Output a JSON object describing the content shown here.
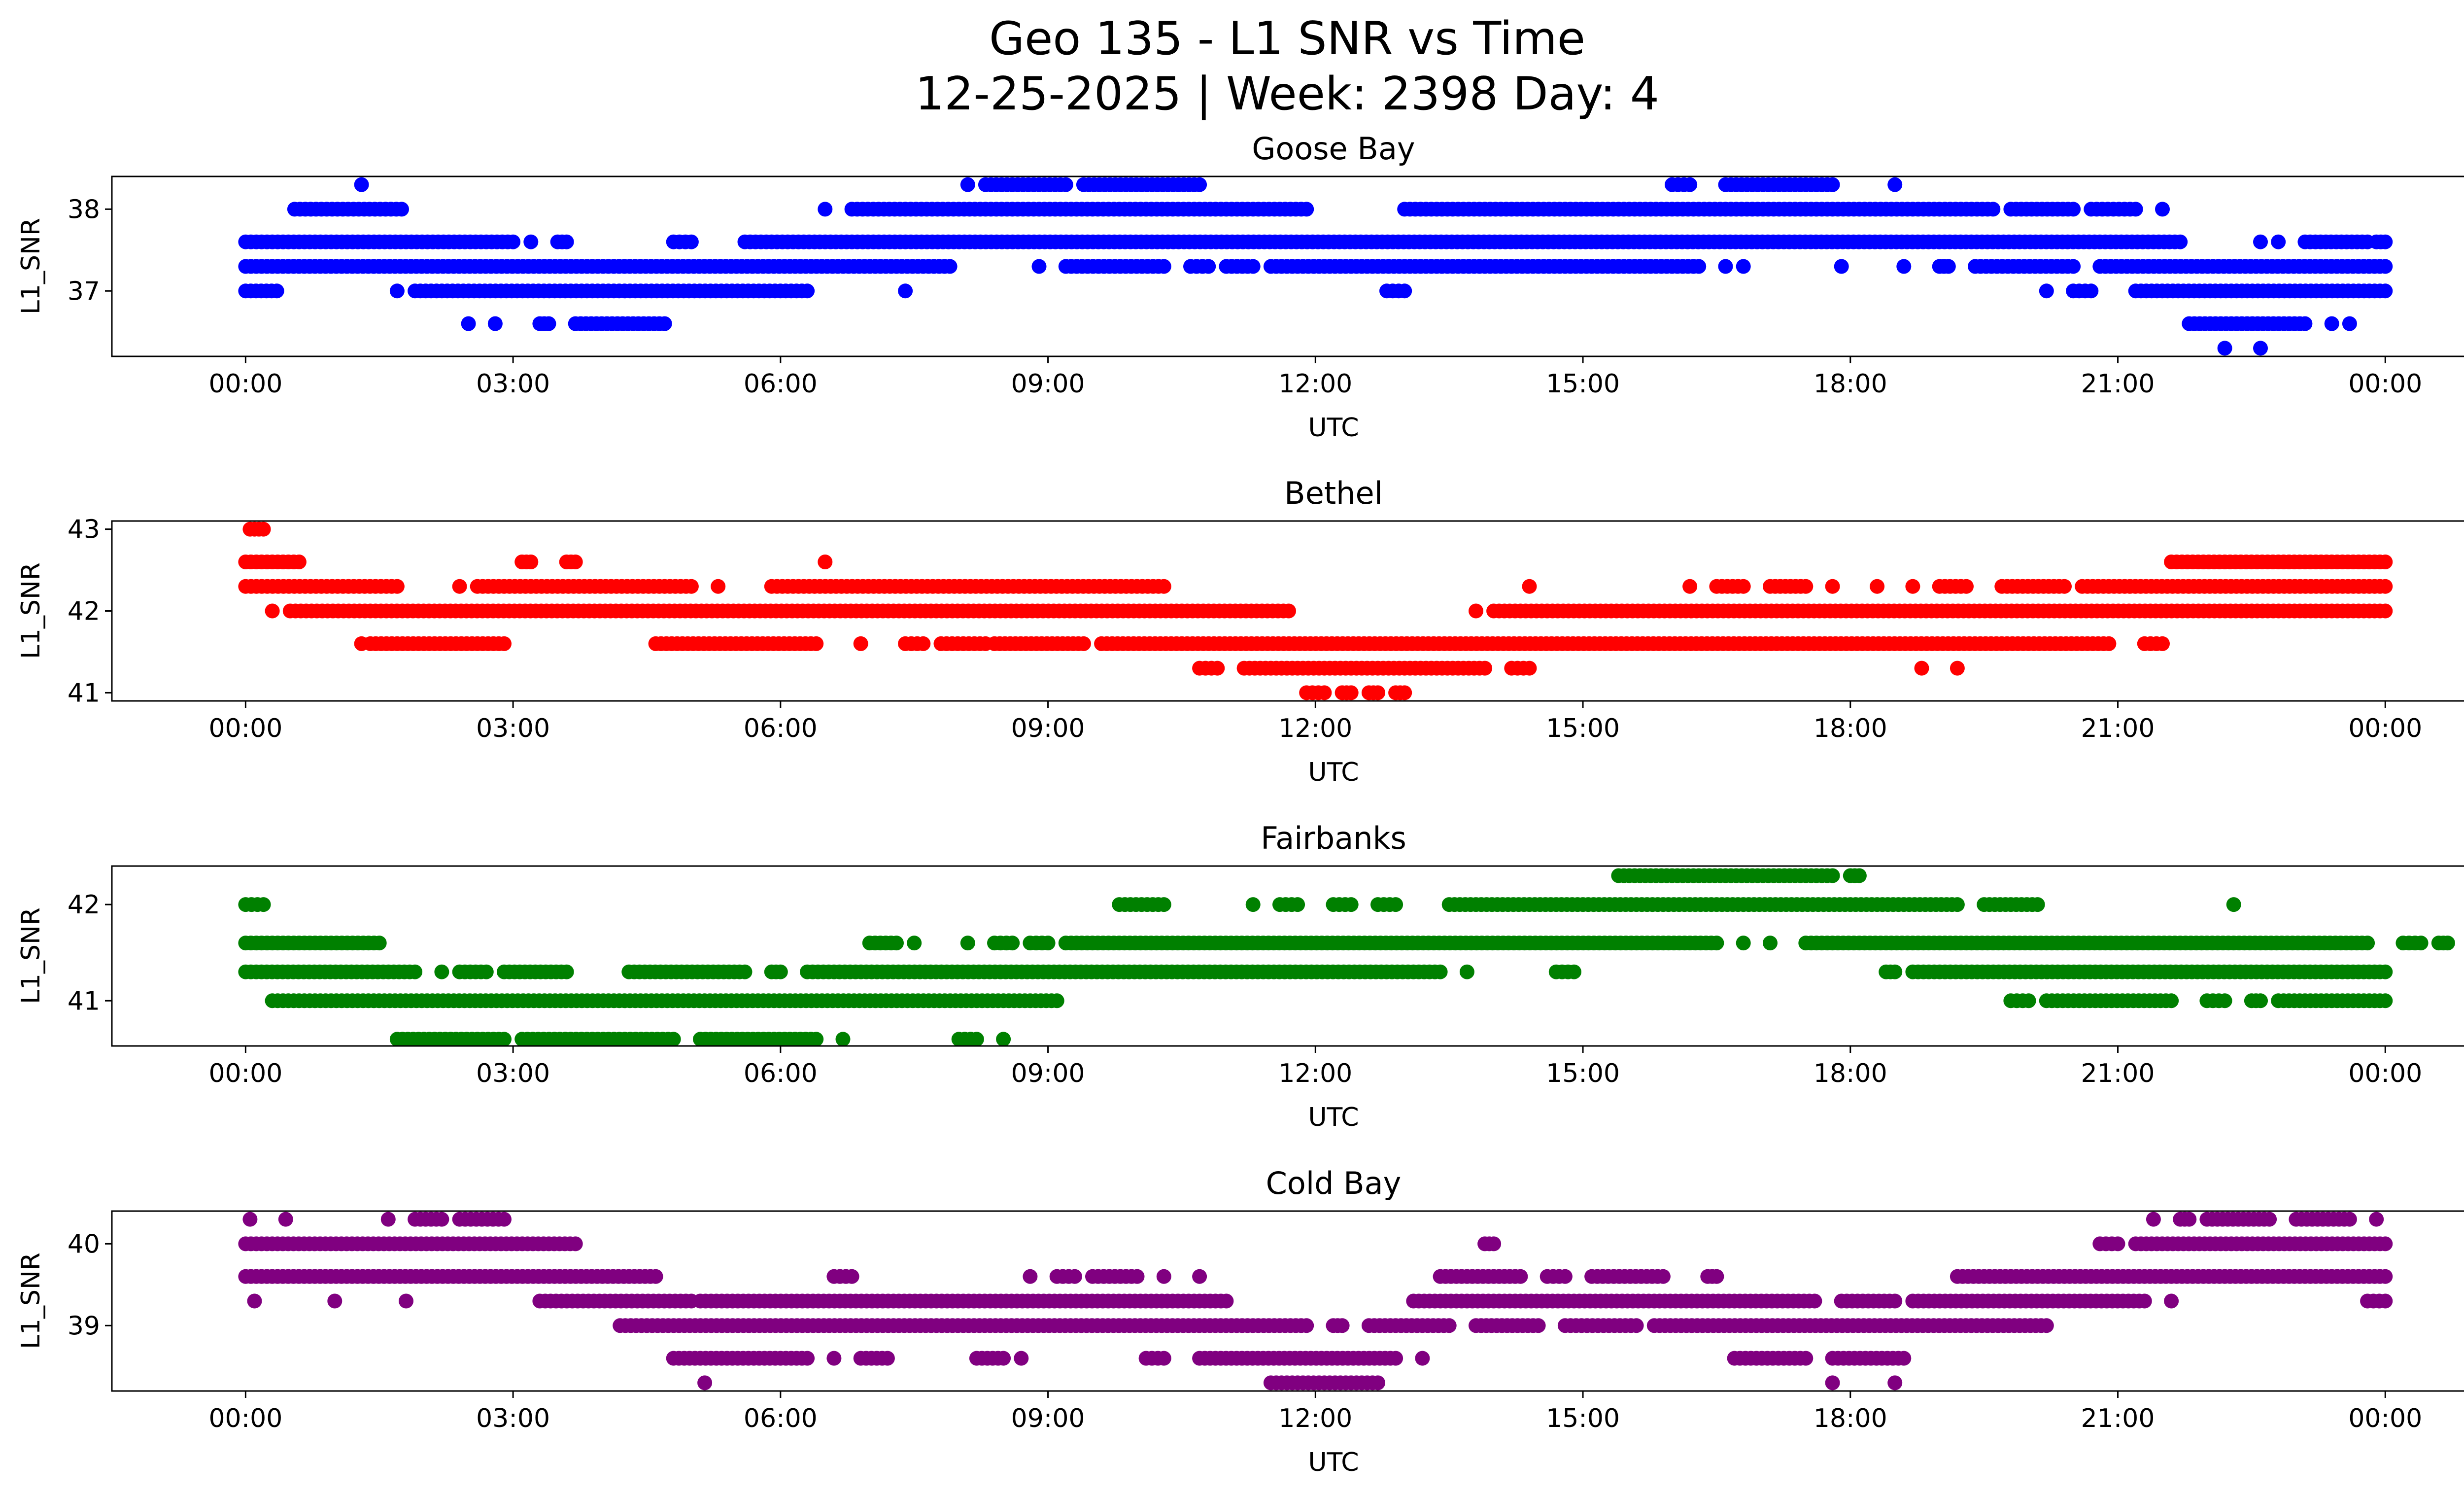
{
  "figure": {
    "title_line1": "Geo 135 - L1 SNR vs Time",
    "title_line2": "12-25-2025 | Week: 2398 Day: 4"
  },
  "chart_data": [
    {
      "type": "scatter",
      "title": "Goose Bay",
      "xlabel": "UTC",
      "ylabel": "L1_SNR",
      "color": "#0000ff",
      "xlim_hours": [
        -1.5,
        25.9
      ],
      "ylim": [
        36.2,
        38.4
      ],
      "xticks": [
        0,
        3,
        6,
        9,
        12,
        15,
        18,
        21,
        24
      ],
      "xtick_labels": [
        "00:00",
        "03:00",
        "06:00",
        "09:00",
        "12:00",
        "15:00",
        "18:00",
        "21:00",
        "00:00"
      ],
      "yticks": [
        37,
        38
      ],
      "ytick_labels": [
        "37",
        "38"
      ],
      "series": [
        {
          "y": 38.3,
          "segments": [
            [
              1.3,
              1.3
            ],
            [
              8.1,
              8.1
            ],
            [
              8.3,
              9.2
            ],
            [
              9.4,
              10.7
            ],
            [
              16,
              16.2
            ],
            [
              16.6,
              17.8
            ],
            [
              18.5,
              18.5
            ]
          ]
        },
        {
          "y": 38.0,
          "segments": [
            [
              0.55,
              1.75
            ],
            [
              6.5,
              6.5
            ],
            [
              6.8,
              11.9
            ],
            [
              13,
              19.6
            ],
            [
              19.8,
              20.5
            ],
            [
              20.7,
              21.2
            ],
            [
              21.5,
              21.5
            ]
          ]
        },
        {
          "y": 37.6,
          "segments": [
            [
              0,
              3.0
            ],
            [
              3.2,
              3.2
            ],
            [
              3.5,
              3.6
            ],
            [
              4.8,
              5.0
            ],
            [
              5.6,
              21.7
            ],
            [
              22.6,
              22.6
            ],
            [
              22.8,
              22.8
            ],
            [
              23.1,
              23.8
            ],
            [
              23.9,
              24
            ]
          ]
        },
        {
          "y": 37.3,
          "segments": [
            [
              0,
              7.9
            ],
            [
              8.9,
              8.9
            ],
            [
              9.2,
              10.3
            ],
            [
              10.6,
              10.8
            ],
            [
              11.0,
              11.3
            ],
            [
              11.5,
              16.3
            ],
            [
              16.6,
              16.6
            ],
            [
              16.8,
              16.8
            ],
            [
              17.9,
              17.9
            ],
            [
              18.6,
              18.6
            ],
            [
              19.0,
              19.1
            ],
            [
              19.4,
              20.5
            ],
            [
              20.8,
              24
            ]
          ]
        },
        {
          "y": 37.0,
          "segments": [
            [
              0,
              0.35
            ],
            [
              1.7,
              1.7
            ],
            [
              1.9,
              6.3
            ],
            [
              7.4,
              7.4
            ],
            [
              12.8,
              13
            ],
            [
              20.2,
              20.2
            ],
            [
              20.5,
              20.7
            ],
            [
              21.2,
              24
            ]
          ]
        },
        {
          "y": 36.6,
          "segments": [
            [
              2.5,
              2.5
            ],
            [
              2.8,
              2.8
            ],
            [
              3.3,
              3.4
            ],
            [
              3.7,
              4.7
            ],
            [
              21.8,
              23.1
            ],
            [
              23.4,
              23.4
            ],
            [
              23.6,
              23.6
            ]
          ]
        },
        {
          "y": 36.3,
          "segments": [
            [
              22.2,
              22.2
            ],
            [
              22.6,
              22.6
            ]
          ]
        }
      ]
    },
    {
      "type": "scatter",
      "title": "Bethel",
      "xlabel": "UTC",
      "ylabel": "L1_SNR",
      "color": "#ff0000",
      "xlim_hours": [
        -1.5,
        25.9
      ],
      "ylim": [
        40.9,
        43.1
      ],
      "xticks": [
        0,
        3,
        6,
        9,
        12,
        15,
        18,
        21,
        24
      ],
      "xtick_labels": [
        "00:00",
        "03:00",
        "06:00",
        "09:00",
        "12:00",
        "15:00",
        "18:00",
        "21:00",
        "00:00"
      ],
      "yticks": [
        41,
        42,
        43
      ],
      "ytick_labels": [
        "41",
        "42",
        "43"
      ],
      "series": [
        {
          "y": 43.0,
          "segments": [
            [
              0.05,
              0.2
            ]
          ]
        },
        {
          "y": 42.6,
          "segments": [
            [
              0,
              0.6
            ],
            [
              3.1,
              3.2
            ],
            [
              3.6,
              3.7
            ],
            [
              6.5,
              6.5
            ],
            [
              21.6,
              24
            ]
          ]
        },
        {
          "y": 42.3,
          "segments": [
            [
              0,
              1.7
            ],
            [
              2.4,
              2.4
            ],
            [
              2.6,
              5.0
            ],
            [
              5.3,
              5.3
            ],
            [
              5.9,
              10.3
            ],
            [
              14.4,
              14.4
            ],
            [
              16.2,
              16.2
            ],
            [
              16.5,
              16.8
            ],
            [
              17.1,
              17.5
            ],
            [
              17.8,
              17.8
            ],
            [
              18.3,
              18.3
            ],
            [
              18.7,
              18.7
            ],
            [
              19.0,
              19.3
            ],
            [
              19.7,
              20.4
            ],
            [
              20.6,
              24
            ]
          ]
        },
        {
          "y": 42.0,
          "segments": [
            [
              0.3,
              0.3
            ],
            [
              0.5,
              11.7
            ],
            [
              13.8,
              13.8
            ],
            [
              14.0,
              24
            ]
          ]
        },
        {
          "y": 41.6,
          "segments": [
            [
              1.3,
              1.3
            ],
            [
              1.4,
              2.9
            ],
            [
              4.6,
              6.4
            ],
            [
              6.9,
              6.9
            ],
            [
              7.4,
              7.6
            ],
            [
              7.8,
              8.3
            ],
            [
              8.4,
              9.4
            ],
            [
              9.6,
              20.9
            ],
            [
              21.3,
              21.5
            ]
          ]
        },
        {
          "y": 41.3,
          "segments": [
            [
              10.7,
              10.9
            ],
            [
              11.2,
              13.9
            ],
            [
              14.2,
              14.4
            ],
            [
              18.8,
              18.8
            ],
            [
              19.2,
              19.2
            ]
          ]
        },
        {
          "y": 41.0,
          "segments": [
            [
              11.9,
              12.1
            ],
            [
              12.3,
              12.4
            ],
            [
              12.6,
              12.7
            ],
            [
              12.9,
              13.0
            ]
          ]
        }
      ]
    },
    {
      "type": "scatter",
      "title": "Fairbanks",
      "xlabel": "UTC",
      "ylabel": "L1_SNR",
      "color": "#008000",
      "xlim_hours": [
        -1.5,
        25.9
      ],
      "ylim": [
        40.53,
        42.4
      ],
      "xticks": [
        0,
        3,
        6,
        9,
        12,
        15,
        18,
        21,
        24
      ],
      "xtick_labels": [
        "00:00",
        "03:00",
        "06:00",
        "09:00",
        "12:00",
        "15:00",
        "18:00",
        "21:00",
        "00:00"
      ],
      "yticks": [
        41,
        42
      ],
      "ytick_labels": [
        "41",
        "42"
      ],
      "series": [
        {
          "y": 42.3,
          "segments": [
            [
              15.4,
              17.8
            ],
            [
              18,
              18.1
            ]
          ]
        },
        {
          "y": 42.0,
          "segments": [
            [
              0,
              0.2
            ],
            [
              9.8,
              10.3
            ],
            [
              11.3,
              11.3
            ],
            [
              11.6,
              11.8
            ],
            [
              12.2,
              12.4
            ],
            [
              12.7,
              12.9
            ],
            [
              13.5,
              19.2
            ],
            [
              19.5,
              20.1
            ],
            [
              22.3,
              22.3
            ]
          ]
        },
        {
          "y": 41.6,
          "segments": [
            [
              0,
              1.5
            ],
            [
              7.0,
              7.3
            ],
            [
              7.5,
              7.5
            ],
            [
              8.1,
              8.1
            ],
            [
              8.4,
              8.6
            ],
            [
              8.8,
              9.0
            ],
            [
              9.2,
              16.5
            ],
            [
              16.8,
              16.8
            ],
            [
              17.1,
              17.1
            ],
            [
              17.5,
              23.8
            ],
            [
              24.2,
              24.4
            ],
            [
              24.6,
              24.7
            ]
          ]
        },
        {
          "y": 41.3,
          "segments": [
            [
              0,
              1.9
            ],
            [
              2.2,
              2.2
            ],
            [
              2.4,
              2.7
            ],
            [
              2.9,
              3.6
            ],
            [
              4.3,
              5.6
            ],
            [
              5.9,
              6.0
            ],
            [
              6.3,
              13.4
            ],
            [
              13.7,
              13.7
            ],
            [
              14.7,
              14.9
            ],
            [
              18.4,
              18.5
            ],
            [
              18.7,
              24
            ]
          ]
        },
        {
          "y": 41.0,
          "segments": [
            [
              0.3,
              9.1
            ],
            [
              19.8,
              20.0
            ],
            [
              20.2,
              21.6
            ],
            [
              22.0,
              22.2
            ],
            [
              22.5,
              22.6
            ],
            [
              22.8,
              24
            ]
          ]
        },
        {
          "y": 40.6,
          "segments": [
            [
              1.7,
              2.9
            ],
            [
              3.1,
              4.8
            ],
            [
              5.1,
              6.4
            ],
            [
              6.7,
              6.7
            ],
            [
              8.0,
              8.2
            ],
            [
              8.5,
              8.5
            ]
          ]
        }
      ]
    },
    {
      "type": "scatter",
      "title": "Cold Bay",
      "xlabel": "UTC",
      "ylabel": "L1_SNR",
      "color": "#800080",
      "xlim_hours": [
        -1.5,
        25.9
      ],
      "ylim": [
        38.2,
        40.4
      ],
      "xticks": [
        0,
        3,
        6,
        9,
        12,
        15,
        18,
        21,
        24
      ],
      "xtick_labels": [
        "00:00",
        "03:00",
        "06:00",
        "09:00",
        "12:00",
        "15:00",
        "18:00",
        "21:00",
        "00:00"
      ],
      "yticks": [
        39,
        40
      ],
      "ytick_labels": [
        "39",
        "40"
      ],
      "series": [
        {
          "y": 40.3,
          "segments": [
            [
              0.05,
              0.05
            ],
            [
              0.45,
              0.45
            ],
            [
              1.6,
              1.6
            ],
            [
              1.9,
              2.2
            ],
            [
              2.4,
              2.9
            ],
            [
              21.4,
              21.4
            ],
            [
              21.7,
              21.8
            ],
            [
              22.0,
              22.7
            ],
            [
              23.0,
              23.6
            ],
            [
              23.9,
              23.9
            ]
          ]
        },
        {
          "y": 40.0,
          "segments": [
            [
              0,
              3.7
            ],
            [
              13.9,
              14.0
            ],
            [
              20.8,
              21.0
            ],
            [
              21.2,
              24
            ]
          ]
        },
        {
          "y": 39.6,
          "segments": [
            [
              0,
              4.6
            ],
            [
              6.6,
              6.8
            ],
            [
              8.8,
              8.8
            ],
            [
              9.1,
              9.3
            ],
            [
              9.5,
              10.0
            ],
            [
              10.3,
              10.3
            ],
            [
              10.7,
              10.7
            ],
            [
              13.4,
              14.3
            ],
            [
              14.6,
              14.8
            ],
            [
              15.1,
              15.9
            ],
            [
              16.4,
              16.5
            ],
            [
              19.2,
              24
            ]
          ]
        },
        {
          "y": 39.3,
          "segments": [
            [
              0.1,
              0.1
            ],
            [
              1.0,
              1.0
            ],
            [
              1.8,
              1.8
            ],
            [
              3.3,
              5.0
            ],
            [
              5.1,
              11.0
            ],
            [
              13.1,
              17.6
            ],
            [
              17.9,
              18.5
            ],
            [
              18.7,
              21.3
            ],
            [
              21.6,
              21.6
            ],
            [
              23.8,
              24
            ]
          ]
        },
        {
          "y": 39.0,
          "segments": [
            [
              4.2,
              11.9
            ],
            [
              12.2,
              12.3
            ],
            [
              12.6,
              13.5
            ],
            [
              13.8,
              14.5
            ],
            [
              14.8,
              15.6
            ],
            [
              15.8,
              20.2
            ]
          ]
        },
        {
          "y": 38.6,
          "segments": [
            [
              4.8,
              6.3
            ],
            [
              6.6,
              6.6
            ],
            [
              6.9,
              7.2
            ],
            [
              8.2,
              8.5
            ],
            [
              8.7,
              8.7
            ],
            [
              10.1,
              10.3
            ],
            [
              10.7,
              12.9
            ],
            [
              13.2,
              13.2
            ],
            [
              16.7,
              17.5
            ],
            [
              17.8,
              18.6
            ]
          ]
        },
        {
          "y": 38.3,
          "segments": [
            [
              5.15,
              5.15
            ],
            [
              11.5,
              12.7
            ],
            [
              17.8,
              17.8
            ],
            [
              18.5,
              18.5
            ]
          ]
        }
      ]
    }
  ]
}
